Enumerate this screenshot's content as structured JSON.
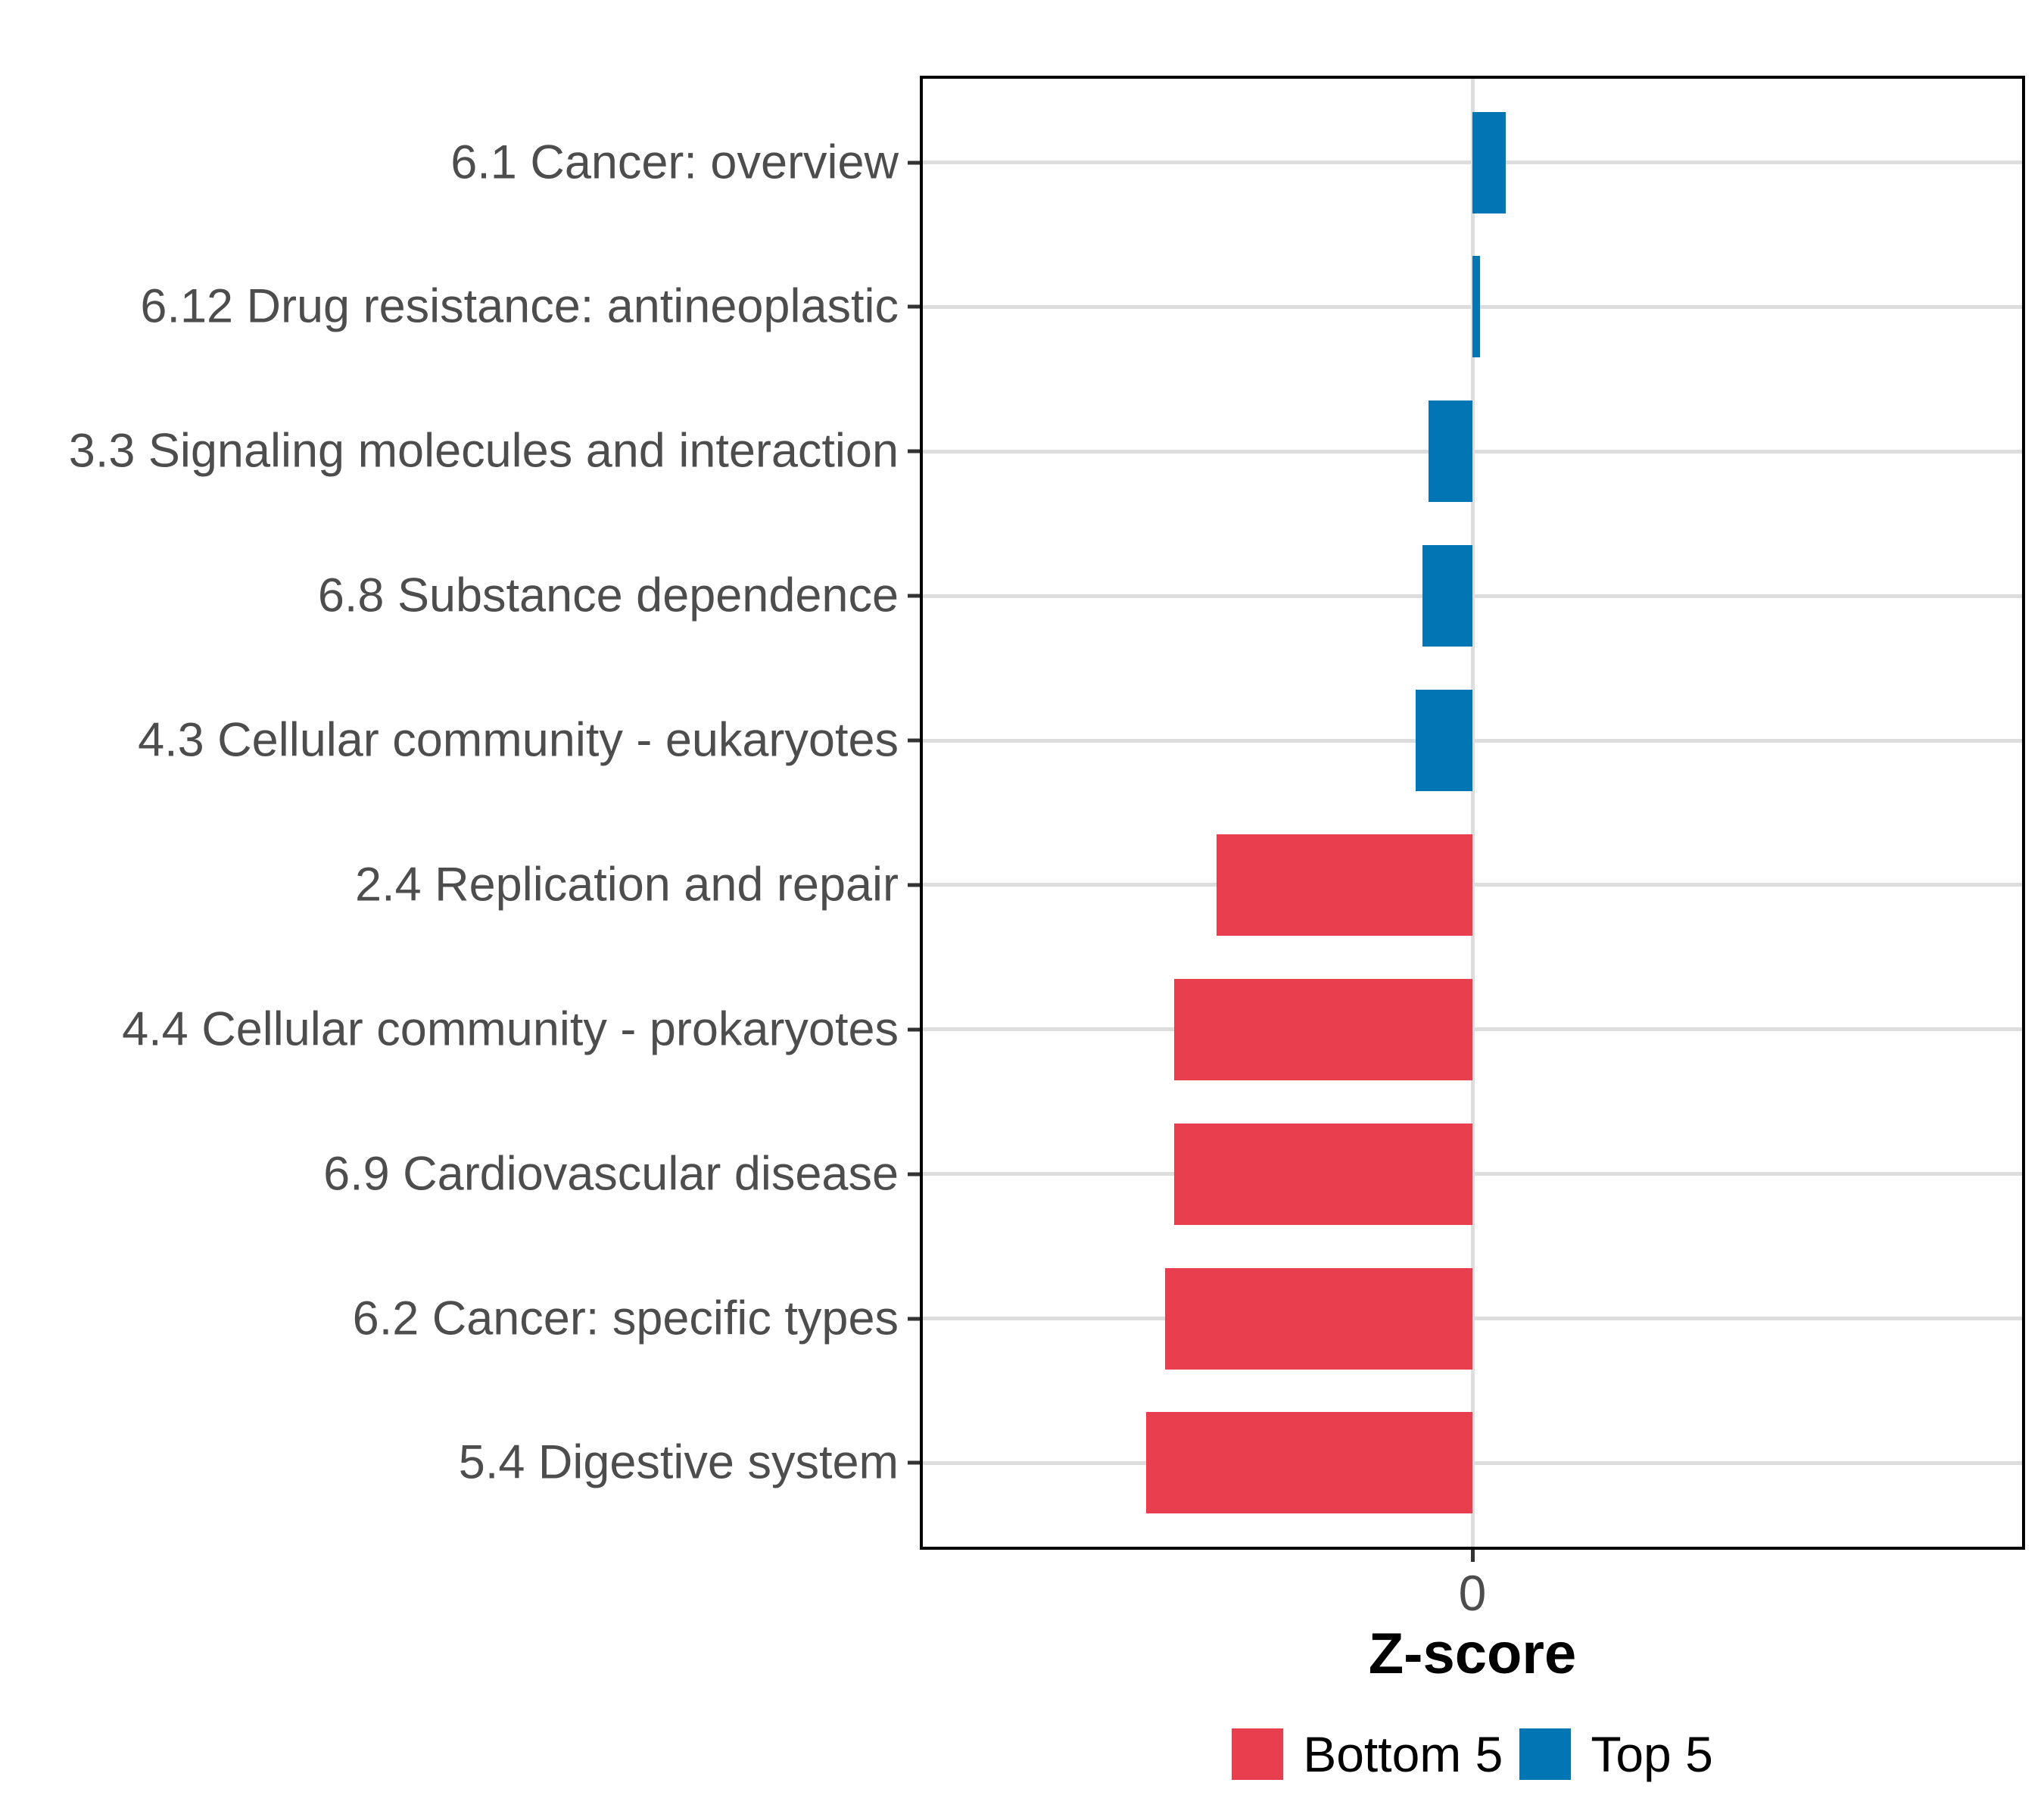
{
  "chart_data": {
    "type": "bar",
    "orientation": "horizontal",
    "title": "",
    "xlabel": "Z-score",
    "ylabel": "",
    "xlim": [
      -3,
      3
    ],
    "x_ticks": [
      0
    ],
    "x_tick_labels": [
      "0"
    ],
    "grid": {
      "horizontal_per_category": true,
      "vertical_at": [
        0
      ]
    },
    "bars": [
      {
        "category": "6.1 Cancer: overview",
        "value": 0.18,
        "group": "Top 5"
      },
      {
        "category": "6.12 Drug resistance: antineoplastic",
        "value": 0.04,
        "group": "Top 5"
      },
      {
        "category": "3.3 Signaling molecules and interaction",
        "value": -0.24,
        "group": "Top 5"
      },
      {
        "category": "6.8 Substance dependence",
        "value": -0.27,
        "group": "Top 5"
      },
      {
        "category": "4.3 Cellular community - eukaryotes",
        "value": -0.31,
        "group": "Top 5"
      },
      {
        "category": "2.4 Replication and repair",
        "value": -1.39,
        "group": "Bottom 5"
      },
      {
        "category": "4.4 Cellular community - prokaryotes",
        "value": -1.62,
        "group": "Bottom 5"
      },
      {
        "category": "6.9 Cardiovascular disease",
        "value": -1.62,
        "group": "Bottom 5"
      },
      {
        "category": "6.2 Cancer: specific types",
        "value": -1.67,
        "group": "Bottom 5"
      },
      {
        "category": "5.4 Digestive system",
        "value": -1.77,
        "group": "Bottom 5"
      }
    ],
    "legend": {
      "position": "bottom",
      "entries": [
        {
          "label": "Bottom 5",
          "color": "#E83E4D"
        },
        {
          "label": "Top 5",
          "color": "#0276B5"
        }
      ]
    }
  },
  "style": {
    "bar_colors": {
      "Top 5": "#0276B5",
      "Bottom 5": "#E83E4D"
    },
    "grid_color": "#DDDDDD",
    "panel_border_color": "#000000",
    "axis_text_color": "#4D4D4D",
    "tick_color": "#333333",
    "background": "#FFFFFF"
  }
}
